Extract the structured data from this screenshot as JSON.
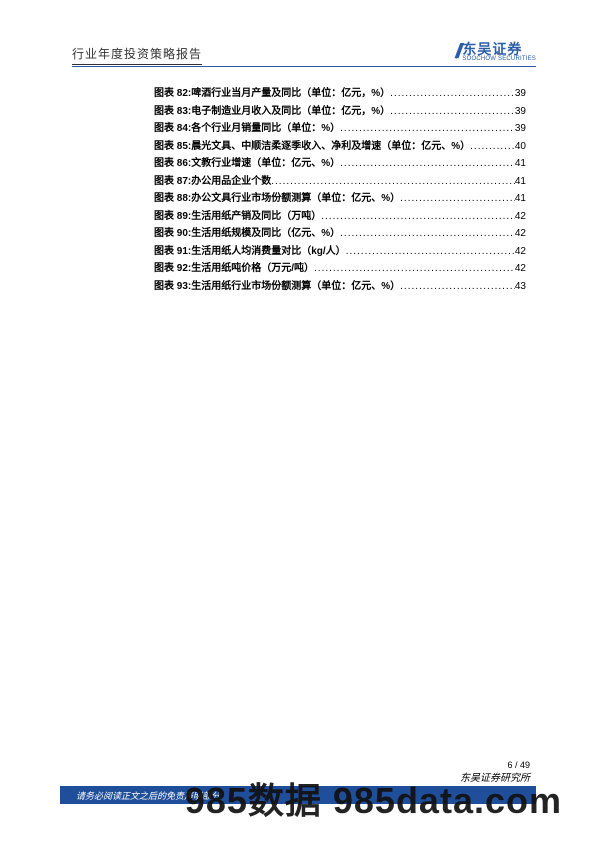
{
  "header": {
    "title": "行业年度投资策略报告"
  },
  "logo": {
    "cn": "东吴证券",
    "en": "SOOCHOW SECURITIES"
  },
  "toc": {
    "label_prefix": "图表",
    "items": [
      {
        "num": "82",
        "title": "啤酒行业当月产量及同比（单位：亿元，%）",
        "page": "39"
      },
      {
        "num": "83",
        "title": "电子制造业月收入及同比（单位：亿元，%）",
        "page": "39"
      },
      {
        "num": "84",
        "title": "各个行业月销量同比（单位：%）",
        "page": "39"
      },
      {
        "num": "85",
        "title": "晨光文具、中顺洁柔逐季收入、净利及增速（单位：亿元、%）",
        "page": "40"
      },
      {
        "num": "86",
        "title": "文教行业增速（单位：亿元、%）",
        "page": "41"
      },
      {
        "num": "87",
        "title": "办公用品企业个数",
        "page": "41"
      },
      {
        "num": "88",
        "title": "办公文具行业市场份额测算（单位：亿元、%）",
        "page": "41"
      },
      {
        "num": "89",
        "title": "生活用纸产销及同比（万吨）",
        "page": "42"
      },
      {
        "num": "90",
        "title": "生活用纸规模及同比（亿元、%）",
        "page": "42"
      },
      {
        "num": "91",
        "title": "生活用纸人均消费量对比（kg/人）",
        "page": "42"
      },
      {
        "num": "92",
        "title": "生活用纸吨价格（万元/吨）",
        "page": "42"
      },
      {
        "num": "93",
        "title": "生活用纸行业市场份额测算（单位：亿元、%）",
        "page": "43"
      }
    ]
  },
  "footer": {
    "page_num": "6 / 49",
    "right_text": "东吴证券研究所",
    "bar_text": "请务必阅读正文之后的免责声明部分"
  },
  "watermark": "985数据 985data.com",
  "colors": {
    "brand": "#2b5da8",
    "bar": "#1f4e9b",
    "accent": "#d95b2e",
    "text": "#000000",
    "page_bg": "#ffffff"
  }
}
